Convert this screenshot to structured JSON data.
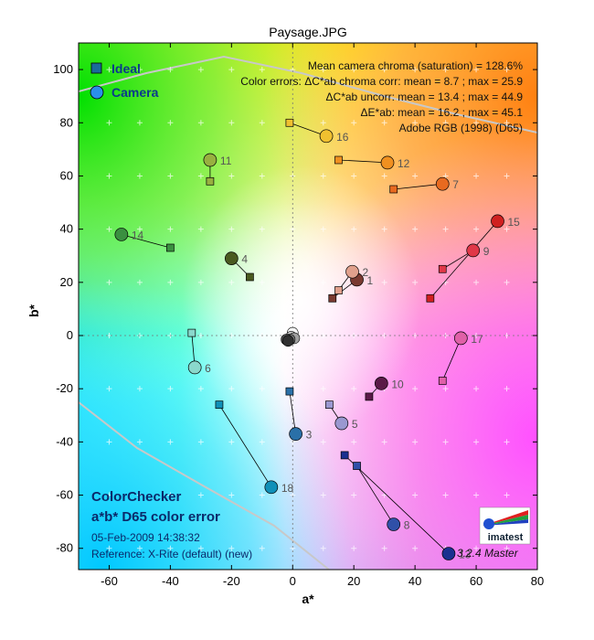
{
  "chart_data": {
    "type": "scatter",
    "title": "Paysage.JPG",
    "xlabel": "a*",
    "ylabel": "b*",
    "xlim": [
      -70,
      80
    ],
    "ylim": [
      -88,
      110
    ],
    "xticks": [
      -60,
      -40,
      -20,
      0,
      20,
      40,
      60,
      80
    ],
    "yticks": [
      -80,
      -60,
      -40,
      -20,
      0,
      20,
      40,
      60,
      80,
      100
    ],
    "grid": "plus-markers",
    "legend": {
      "position": "top-left",
      "entries": [
        {
          "name": "Ideal",
          "marker": "square",
          "color": "#1a6a9a"
        },
        {
          "name": "Camera",
          "marker": "circle",
          "color": "#2a8fe8"
        }
      ]
    },
    "info_lines": [
      "Mean camera chroma (saturation) = 128.6%",
      "Color errors: ΔC*ab chroma corr:  mean = 8.7 ;  max = 25.9",
      "ΔC*ab uncorr:  mean = 13.4 ;  max = 44.9",
      "ΔE*ab:  mean = 16.2 ;  max = 45.1",
      "Adobe RGB (1998) (D65)"
    ],
    "footer": {
      "title1": "ColorChecker",
      "title2": "a*b* D65 color error",
      "date": "05-Feb-2009 14:38:32",
      "reference": "Reference: X-Rite (default) (new)"
    },
    "version": "3.2.4  Master",
    "logo_text": "imatest",
    "patches": [
      {
        "id": "1",
        "ideal": [
          13,
          14
        ],
        "camera": [
          21,
          21
        ],
        "color": "#7a3a30"
      },
      {
        "id": "2",
        "ideal": [
          15,
          17
        ],
        "camera": [
          19.5,
          24
        ],
        "color": "#e0a08c"
      },
      {
        "id": "3",
        "ideal": [
          -1,
          -21
        ],
        "camera": [
          1,
          -37
        ],
        "color": "#2a70a8"
      },
      {
        "id": "4",
        "ideal": [
          -14,
          22
        ],
        "camera": [
          -20,
          29
        ],
        "color": "#4a5a20"
      },
      {
        "id": "5",
        "ideal": [
          12,
          -26
        ],
        "camera": [
          16,
          -33
        ],
        "color": "#9a98d0"
      },
      {
        "id": "6",
        "ideal": [
          -33,
          1
        ],
        "camera": [
          -32,
          -12
        ],
        "color": "#8ad8cc"
      },
      {
        "id": "7",
        "ideal": [
          33,
          55
        ],
        "camera": [
          49,
          57
        ],
        "color": "#e86a20"
      },
      {
        "id": "8",
        "ideal": [
          21,
          -49
        ],
        "camera": [
          33,
          -71
        ],
        "color": "#3050a8"
      },
      {
        "id": "9",
        "ideal": [
          49,
          25
        ],
        "camera": [
          59,
          32
        ],
        "color": "#e03848"
      },
      {
        "id": "10",
        "ideal": [
          25,
          -23
        ],
        "camera": [
          29,
          -18
        ],
        "color": "#5a1a48"
      },
      {
        "id": "11",
        "ideal": [
          -27,
          58
        ],
        "camera": [
          -27,
          66
        ],
        "color": "#98b040"
      },
      {
        "id": "12",
        "ideal": [
          15,
          66
        ],
        "camera": [
          31,
          65
        ],
        "color": "#f09020"
      },
      {
        "id": "13",
        "ideal": [
          17,
          -45
        ],
        "camera": [
          51,
          -82
        ],
        "color": "#1a3090"
      },
      {
        "id": "14",
        "ideal": [
          -40,
          33
        ],
        "camera": [
          -56,
          38
        ],
        "color": "#3a9040"
      },
      {
        "id": "15",
        "ideal": [
          45,
          14
        ],
        "camera": [
          67,
          43
        ],
        "color": "#d02020"
      },
      {
        "id": "16",
        "ideal": [
          -1,
          80
        ],
        "camera": [
          11,
          75
        ],
        "color": "#f0c030"
      },
      {
        "id": "17",
        "ideal": [
          49,
          -17
        ],
        "camera": [
          55,
          -1
        ],
        "color": "#e060a8"
      },
      {
        "id": "18",
        "ideal": [
          -24,
          -26
        ],
        "camera": [
          -7,
          -57
        ],
        "color": "#1090b8"
      }
    ],
    "neutrals": [
      {
        "camera": [
          0,
          1
        ],
        "color": "#f4f4f4"
      },
      {
        "camera": [
          -0.5,
          -0.5
        ],
        "color": "#c8c8c8"
      },
      {
        "camera": [
          0.5,
          -1
        ],
        "color": "#a0a0a0"
      },
      {
        "camera": [
          -1,
          -1.5
        ],
        "color": "#787878"
      },
      {
        "camera": [
          -2,
          -1.5
        ],
        "color": "#505050"
      },
      {
        "camera": [
          -1.5,
          -2
        ],
        "color": "#303030"
      }
    ]
  }
}
